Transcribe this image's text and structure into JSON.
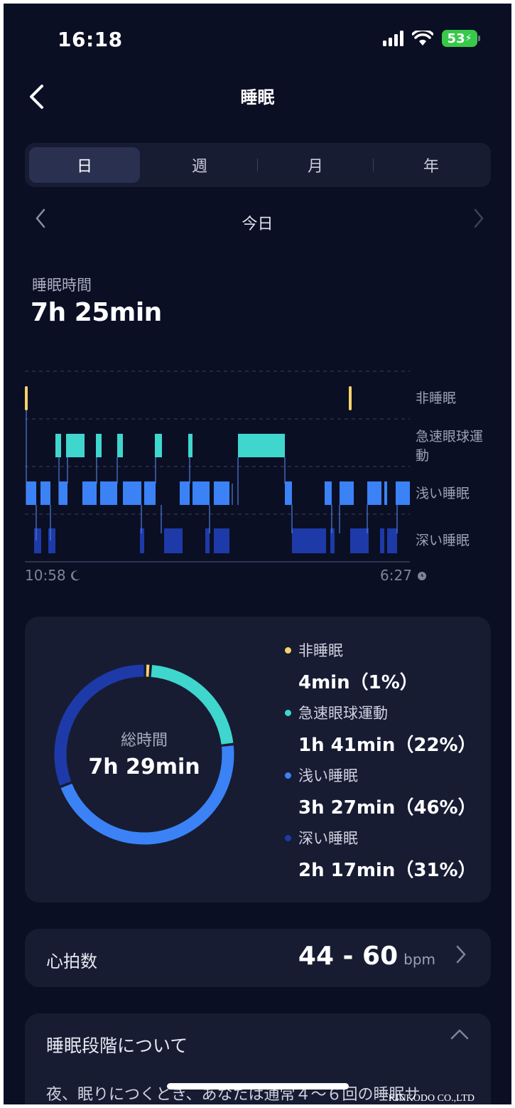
{
  "status_bar": {
    "time": "16:18",
    "battery": "53"
  },
  "header": {
    "title": "睡眠"
  },
  "period_tabs": [
    "日",
    "週",
    "月",
    "年"
  ],
  "date_nav": {
    "label": "今日"
  },
  "sleep_duration": {
    "label": "睡眠時間",
    "value": "7h 25min"
  },
  "stage_chart": {
    "levels": [
      "非睡眠",
      "急速眼球運動",
      "浅い睡眠",
      "深い睡眠"
    ],
    "start_time": "10:58",
    "end_time": "6:27"
  },
  "summary": {
    "center_label": "総時間",
    "center_value": "7h 29min",
    "stages": [
      {
        "name": "非睡眠",
        "value": "4min（1%）",
        "percent": 1,
        "color": "#f5d36b"
      },
      {
        "name": "急速眼球運動",
        "value": "1h 41min（22%）",
        "percent": 22,
        "color": "#3fd6cd"
      },
      {
        "name": "浅い睡眠",
        "value": "3h 27min（46%）",
        "percent": 46,
        "color": "#3b82f6"
      },
      {
        "name": "深い睡眠",
        "value": "2h 17min（31%）",
        "percent": 31,
        "color": "#1d3aa8"
      }
    ]
  },
  "heart_rate": {
    "label": "心拍数",
    "range": "44 - 60",
    "unit": "bpm"
  },
  "about": {
    "title": "睡眠段階について",
    "text": "夜、眠りにつくとき、あなたは通常４～６回の睡眠サ"
  },
  "watermark": "KINKODO CO.,LTD"
}
